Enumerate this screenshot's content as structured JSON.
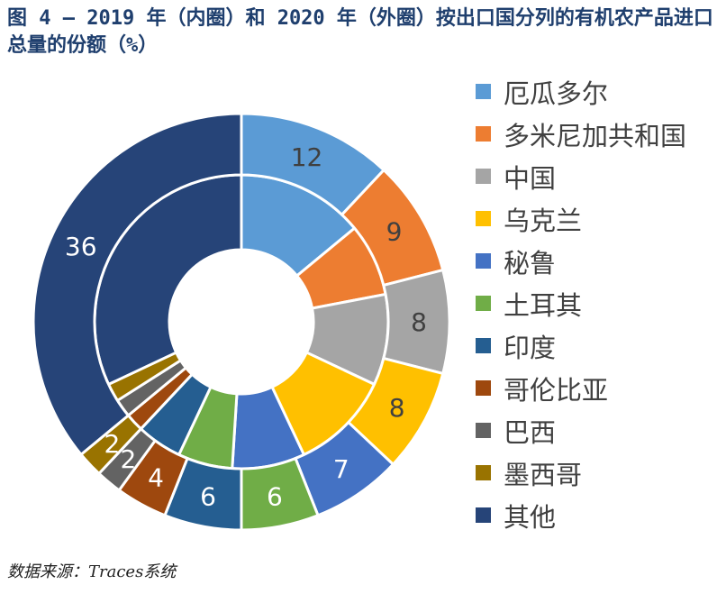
{
  "title": "图 4 – 2019 年（内圈）和 2020 年（外圈）按出口国分列的有机农产品进口总量的份额（%）",
  "source": "数据来源：Traces系统",
  "chart_data": {
    "type": "donut",
    "categories": [
      "厄瓜多尔",
      "多米尼加共和国",
      "中国",
      "乌克兰",
      "秘鲁",
      "土耳其",
      "印度",
      "哥伦比亚",
      "巴西",
      "墨西哥",
      "其他"
    ],
    "colors": [
      "#5b9bd5",
      "#ed7d31",
      "#a5a5a5",
      "#ffc000",
      "#4472c4",
      "#70ad47",
      "#255e91",
      "#9e480e",
      "#636363",
      "#997300",
      "#264478"
    ],
    "series": [
      {
        "name": "2019 年（内圈）",
        "values": [
          14,
          8,
          10,
          11,
          8,
          6,
          5,
          2,
          2,
          2,
          32
        ]
      },
      {
        "name": "2020 年（外圈）",
        "values": [
          12,
          9,
          8,
          8,
          7,
          6,
          6,
          4,
          2,
          2,
          36
        ]
      }
    ],
    "outer_labels": [
      "12",
      "9",
      "8",
      "8",
      "7",
      "6",
      "6",
      "4",
      "2",
      "2",
      "36"
    ]
  }
}
